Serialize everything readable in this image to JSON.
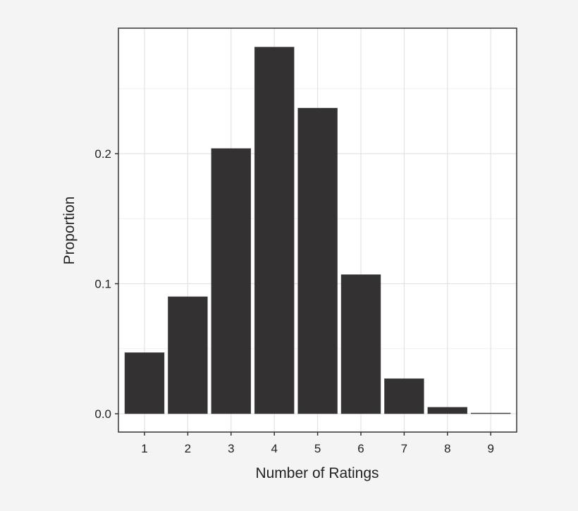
{
  "chart_data": {
    "type": "bar",
    "title": "",
    "xlabel": "Number of Ratings",
    "ylabel": "Proportion",
    "categories": [
      "1",
      "2",
      "3",
      "4",
      "5",
      "6",
      "7",
      "8",
      "9"
    ],
    "values": [
      0.047,
      0.09,
      0.204,
      0.282,
      0.235,
      0.107,
      0.027,
      0.005,
      0.0005
    ],
    "ylim": [
      -0.015,
      0.296
    ],
    "yticks": [
      0.0,
      0.1,
      0.2
    ],
    "ytick_labels": [
      "0.0",
      "0.1",
      "0.2"
    ],
    "grid": true,
    "legend": null,
    "bar_color": "#333132",
    "panel_background": "#ffffff",
    "page_background": "#f4f4f4",
    "grid_color": "#e3e3e3"
  }
}
